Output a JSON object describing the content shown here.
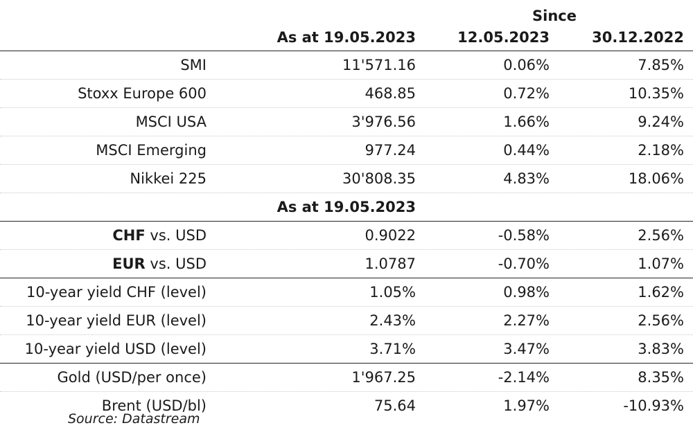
{
  "header": {
    "since": "Since",
    "col1": "As at 19.05.2023",
    "col2": "12.05.2023",
    "col3": "30.12.2022"
  },
  "indices": [
    {
      "name": "SMI",
      "value": "11'571.16",
      "wk": "0.06%",
      "ytd": "7.85%"
    },
    {
      "name": "Stoxx Europe 600",
      "value": "468.85",
      "wk": "0.72%",
      "ytd": "10.35%"
    },
    {
      "name": "MSCI USA",
      "value": "3'976.56",
      "wk": "1.66%",
      "ytd": "9.24%"
    },
    {
      "name": "MSCI Emerging",
      "value": "977.24",
      "wk": "0.44%",
      "ytd": "2.18%"
    },
    {
      "name": "Nikkei 225",
      "value": "30'808.35",
      "wk": "4.83%",
      "ytd": "18.06%"
    }
  ],
  "subheader": "As at 19.05.2023",
  "fx": [
    {
      "ccy": "CHF",
      "rest": " vs. USD",
      "value": "0.9022",
      "wk": "-0.58%",
      "ytd": "2.56%"
    },
    {
      "ccy": "EUR",
      "rest": " vs. USD",
      "value": "1.0787",
      "wk": "-0.70%",
      "ytd": "1.07%"
    }
  ],
  "yields": [
    {
      "name": "10-year yield CHF (level)",
      "value": "1.05%",
      "wk": "0.98%",
      "ytd": "1.62%"
    },
    {
      "name": "10-year yield EUR (level)",
      "value": "2.43%",
      "wk": "2.27%",
      "ytd": "2.56%"
    },
    {
      "name": "10-year yield USD (level)",
      "value": "3.71%",
      "wk": "3.47%",
      "ytd": "3.83%"
    }
  ],
  "commodities": [
    {
      "name": "Gold (USD/per once)",
      "value": "1'967.25",
      "wk": "-2.14%",
      "ytd": "8.35%"
    },
    {
      "name": "Brent (USD/bl)",
      "value": "75.64",
      "wk": "1.97%",
      "ytd": "-10.93%"
    }
  ],
  "source": "Source: Datastream"
}
